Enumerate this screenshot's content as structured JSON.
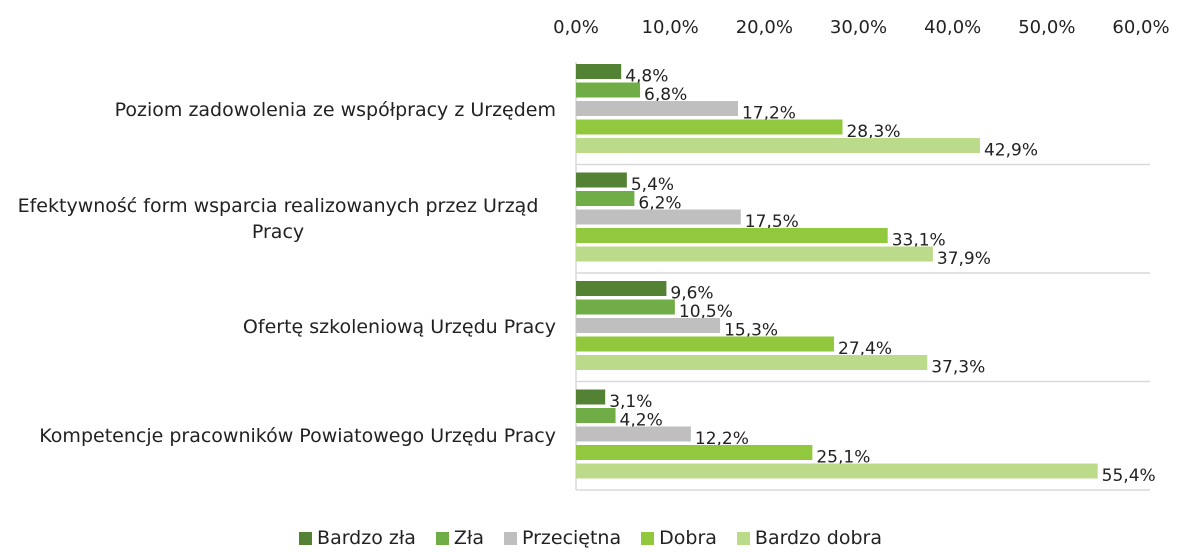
{
  "chart_data": {
    "type": "barh",
    "categories": [
      "Poziom zadowolenia ze współpracy z Urzędem",
      "Efektywność form wsparcia realizowanych przez Urząd Pracy",
      "Ofertę szkoleniową Urzędu Pracy",
      "Kompetencje pracowników Powiatowego Urzędu Pracy"
    ],
    "series": [
      {
        "name": "Bardzo zła",
        "color": "#548235",
        "values": [
          4.8,
          5.4,
          9.6,
          3.1
        ],
        "value_labels": [
          "4,8%",
          "5,4%",
          "9,6%",
          "3,1%"
        ]
      },
      {
        "name": "Zła",
        "color": "#70ad47",
        "values": [
          6.8,
          6.2,
          10.5,
          4.2
        ],
        "value_labels": [
          "6,8%",
          "6,2%",
          "10,5%",
          "4,2%"
        ]
      },
      {
        "name": "Przeciętna",
        "color": "#bfbfbf",
        "values": [
          17.2,
          17.5,
          15.3,
          12.2
        ],
        "value_labels": [
          "17,2%",
          "17,5%",
          "15,3%",
          "12,2%"
        ]
      },
      {
        "name": "Dobra",
        "color": "#92c83e",
        "values": [
          28.3,
          33.1,
          27.4,
          25.1
        ],
        "value_labels": [
          "28,3%",
          "33,1%",
          "27,4%",
          "25,1%"
        ]
      },
      {
        "name": "Bardzo dobra",
        "color": "#bcdb8a",
        "values": [
          42.9,
          37.9,
          37.3,
          55.4
        ],
        "value_labels": [
          "42,9%",
          "37,9%",
          "37,3%",
          "55,4%"
        ]
      }
    ],
    "xlim": [
      0,
      60
    ],
    "xticks": [
      {
        "value": 0,
        "label": "0,0%"
      },
      {
        "value": 10,
        "label": "10,0%"
      },
      {
        "value": 20,
        "label": "20,0%"
      },
      {
        "value": 30,
        "label": "30,0%"
      },
      {
        "value": 40,
        "label": "40,0%"
      },
      {
        "value": 50,
        "label": "50,0%"
      },
      {
        "value": 60,
        "label": "60,0%"
      }
    ],
    "legend": "bottom"
  }
}
